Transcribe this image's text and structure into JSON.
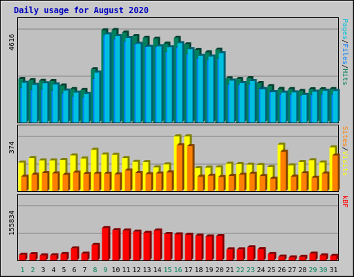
{
  "title": "Daily usage for August 2020",
  "colors": {
    "frame_bg": "#c8c8c8",
    "panel_bg": "#c0c0c0",
    "title": "#0000c0",
    "hits_front": "#00805c",
    "hits_side": "#004030",
    "files_front": "#0080ff",
    "files_side": "#004080",
    "pages_front": "#00c0e0",
    "pages_side": "#006070",
    "visits_front": "#ffff00",
    "visits_side": "#808000",
    "sites_front": "#ff8000",
    "sites_side": "#804000",
    "kbytes_front": "#ff0000",
    "kbytes_side": "#800000",
    "weekday_label": "#000000",
    "weekend_label": "#00805c"
  },
  "panels": {
    "hits": {
      "max_label": "4616",
      "legend": [
        "Pages",
        "/",
        "Files",
        "/",
        "Hits"
      ]
    },
    "visits": {
      "max_label": "374",
      "legend": [
        "Sites",
        "/",
        "Visits"
      ]
    },
    "kbytes": {
      "max_label": "155834",
      "legend": [
        "kB",
        "F"
      ]
    }
  },
  "chart_data": {
    "type": "bar",
    "title": "Daily usage for August 2020",
    "categories": [
      "1",
      "2",
      "3",
      "4",
      "5",
      "6",
      "7",
      "8",
      "9",
      "10",
      "11",
      "12",
      "13",
      "14",
      "15",
      "16",
      "17",
      "18",
      "19",
      "20",
      "21",
      "22",
      "23",
      "24",
      "25",
      "26",
      "27",
      "28",
      "29",
      "30",
      "31"
    ],
    "weekend_days": [
      "1",
      "2",
      "8",
      "9",
      "15",
      "16",
      "22",
      "23",
      "29",
      "30"
    ],
    "series": [
      {
        "name": "Hits",
        "panel": "hits",
        "max": 4616,
        "values": [
          2150,
          2090,
          2060,
          2050,
          1830,
          1650,
          1610,
          2630,
          4550,
          4570,
          4440,
          4270,
          4180,
          4140,
          3900,
          4180,
          3860,
          3590,
          3470,
          3600,
          2180,
          2150,
          2190,
          1950,
          1800,
          1660,
          1650,
          1560,
          1640,
          1640,
          1650
        ]
      },
      {
        "name": "Files",
        "panel": "hits",
        "max": 4616,
        "values": [
          1700,
          1600,
          1620,
          1570,
          1440,
          1280,
          1240,
          2150,
          4300,
          4120,
          4000,
          3860,
          3730,
          3720,
          3480,
          3710,
          3370,
          3160,
          3090,
          3150,
          1880,
          1850,
          1870,
          1660,
          1500,
          1380,
          1370,
          1300,
          1370,
          1380,
          1380
        ]
      },
      {
        "name": "Pages",
        "panel": "hits",
        "max": 4616,
        "values": [
          1960,
          1860,
          1940,
          1880,
          1580,
          1480,
          1410,
          2470,
          4360,
          4270,
          4170,
          3890,
          3740,
          3760,
          3720,
          3920,
          3620,
          3290,
          3260,
          3420,
          2070,
          1950,
          2050,
          1640,
          1500,
          1480,
          1490,
          1370,
          1520,
          1570,
          1560
        ]
      },
      {
        "name": "Visits",
        "panel": "visits",
        "max": 374,
        "values": [
          195,
          226,
          210,
          210,
          213,
          244,
          223,
          282,
          250,
          248,
          226,
          200,
          198,
          163,
          183,
          374,
          374,
          157,
          161,
          163,
          187,
          185,
          181,
          179,
          165,
          318,
          176,
          199,
          211,
          196,
          299
        ]
      },
      {
        "name": "Sites",
        "panel": "visits",
        "max": 374,
        "values": [
          98,
          112,
          123,
          121,
          111,
          126,
          118,
          119,
          119,
          114,
          140,
          123,
          116,
          120,
          127,
          313,
          307,
          98,
          105,
          96,
          104,
          112,
          119,
          103,
          85,
          269,
          99,
          122,
          91,
          120,
          243
        ]
      },
      {
        "name": "KBytes",
        "panel": "kbytes",
        "max": 155834,
        "values": [
          16000,
          17500,
          14000,
          14200,
          18000,
          34000,
          19000,
          44000,
          92000,
          86000,
          85000,
          81500,
          78500,
          85000,
          75000,
          74000,
          73000,
          70000,
          68000,
          69000,
          31000,
          31000,
          37000,
          31500,
          18000,
          10500,
          8500,
          10000,
          19000,
          14000,
          12500
        ]
      }
    ]
  }
}
